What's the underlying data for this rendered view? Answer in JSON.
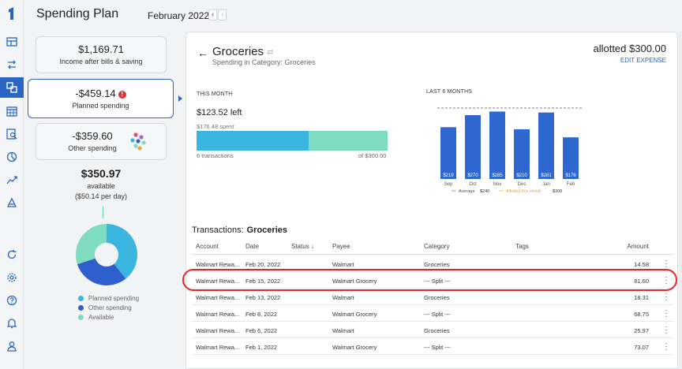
{
  "header": {
    "title": "Spending Plan",
    "month": "February 2022",
    "prev": "‹",
    "next": "›"
  },
  "rail": {
    "icons": [
      "logo-icon",
      "dashboard-icon",
      "transfer-icon",
      "spending-plan-icon",
      "calendar-icon",
      "reports-icon",
      "pie-icon",
      "trending-icon",
      "investments-icon",
      "refresh-icon",
      "settings-icon",
      "help-icon",
      "notifications-icon",
      "profile-icon"
    ]
  },
  "summary": {
    "income": {
      "amount": "$1,169.71",
      "label": "Income after bills & saving"
    },
    "planned": {
      "amount": "-$459.14",
      "label": "Planned spending"
    },
    "other": {
      "amount": "-$359.60",
      "label": "Other spending"
    },
    "available": {
      "amount": "$350.97",
      "label": "available",
      "per_day": "($50.14 per day)"
    },
    "donut": [
      {
        "name": "Planned spending",
        "value": 459.14,
        "color": "#3ab5e0"
      },
      {
        "name": "Other spending",
        "value": 359.6,
        "color": "#2f5fcd"
      },
      {
        "name": "Available",
        "value": 350.97,
        "color": "#7fdcc1"
      }
    ]
  },
  "detail": {
    "back": "←",
    "title": "Groceries",
    "subtitle": "Spending in Category: Groceries",
    "allotted": "allotted $300.00",
    "edit": "EDIT EXPENSE",
    "this_month": {
      "heading": "THIS MONTH",
      "left": "$123.52 left",
      "spent": "$176.48 spent",
      "progress": 0.588,
      "transactions": "6 transactions",
      "of": "of $300.00"
    },
    "last6_heading": "LAST 6 MONTHS"
  },
  "chart_data": {
    "type": "bar",
    "categories": [
      "Sep",
      "Oct",
      "Nov",
      "Dec",
      "Jan",
      "Feb"
    ],
    "values": [
      219,
      270,
      285,
      210,
      281,
      176
    ],
    "value_labels": [
      "$219",
      "$270",
      "$285",
      "$210",
      "$281",
      "$176"
    ],
    "average": 240,
    "allotted": 300,
    "legend": {
      "average_label": "Average",
      "average_value": "$240",
      "allotted_label": "Allotted this month",
      "allotted_value": "$300"
    },
    "colors": {
      "bar": "#2f67d0",
      "average": "#555555",
      "allotted": "#f0a53a"
    }
  },
  "transactions": {
    "heading": "Transactions:",
    "category": "Groceries",
    "columns": {
      "account": "Account",
      "date": "Date",
      "status": "Status ↓",
      "payee": "Payee",
      "category": "Category",
      "tags": "Tags",
      "amount": "Amount"
    },
    "rows": [
      {
        "account": "Walmart Rewa...",
        "date": "Feb 20, 2022",
        "payee": "Walmart",
        "category": "Groceries",
        "amount": "14.58"
      },
      {
        "account": "Walmart Rewa...",
        "date": "Feb 15, 2022",
        "payee": "Walmart Grocery",
        "category": "--- Split ---",
        "amount": "81.60"
      },
      {
        "account": "Walmart Rewa...",
        "date": "Feb 13, 2022",
        "payee": "Walmart",
        "category": "Groceries",
        "amount": "18.31"
      },
      {
        "account": "Walmart Rewa...",
        "date": "Feb 8, 2022",
        "payee": "Walmart Grocery",
        "category": "--- Split ---",
        "amount": "68.75"
      },
      {
        "account": "Walmart Rewa...",
        "date": "Feb 6, 2022",
        "payee": "Walmart",
        "category": "Groceries",
        "amount": "25.97"
      },
      {
        "account": "Walmart Rewa...",
        "date": "Feb 1, 2022",
        "payee": "Walmart Grocery",
        "category": "--- Split ---",
        "amount": "73.07"
      }
    ]
  }
}
